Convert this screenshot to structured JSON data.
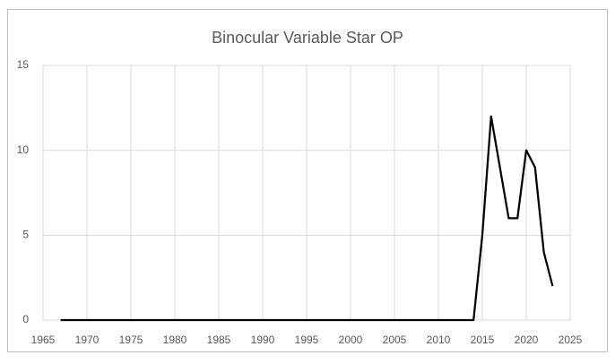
{
  "chart_data": {
    "type": "line",
    "title": "Binocular Variable Star OP",
    "x": [
      1967,
      1968,
      1969,
      1970,
      1971,
      1972,
      1973,
      1974,
      1975,
      1976,
      1977,
      1978,
      1979,
      1980,
      1981,
      1982,
      1983,
      1984,
      1985,
      1986,
      1987,
      1988,
      1989,
      1990,
      1991,
      1992,
      1993,
      1994,
      1995,
      1996,
      1997,
      1998,
      1999,
      2000,
      2001,
      2002,
      2003,
      2004,
      2005,
      2006,
      2007,
      2008,
      2009,
      2010,
      2011,
      2012,
      2013,
      2014,
      2015,
      2016,
      2017,
      2018,
      2019,
      2020,
      2021,
      2022,
      2023
    ],
    "series": [
      {
        "name": "OP",
        "color": "#000000",
        "values": [
          0,
          0,
          0,
          0,
          0,
          0,
          0,
          0,
          0,
          0,
          0,
          0,
          0,
          0,
          0,
          0,
          0,
          0,
          0,
          0,
          0,
          0,
          0,
          0,
          0,
          0,
          0,
          0,
          0,
          0,
          0,
          0,
          0,
          0,
          0,
          0,
          0,
          0,
          0,
          0,
          0,
          0,
          0,
          0,
          0,
          0,
          0,
          0,
          5,
          12,
          9,
          6,
          6,
          10,
          9,
          4,
          2
        ]
      }
    ],
    "xlim": [
      1965,
      2025
    ],
    "xticks": [
      1965,
      1970,
      1975,
      1980,
      1985,
      1990,
      1995,
      2000,
      2005,
      2010,
      2015,
      2020,
      2025
    ],
    "ylim": [
      0,
      15
    ],
    "yticks": [
      0,
      5,
      10,
      15
    ],
    "grid": true
  }
}
